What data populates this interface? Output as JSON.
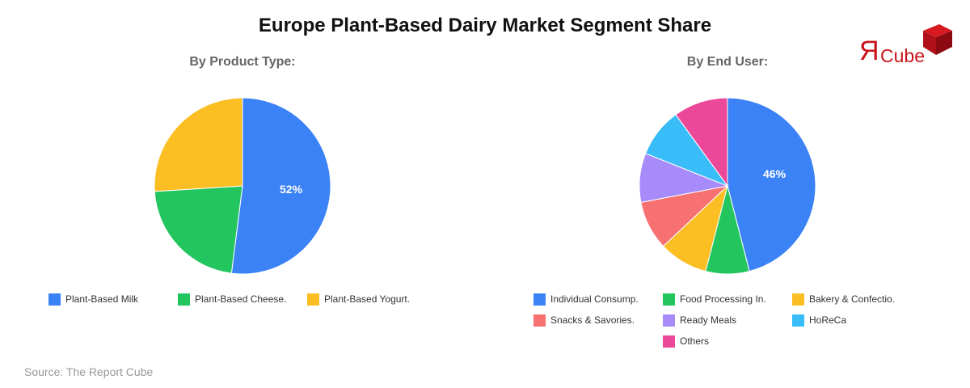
{
  "header": {
    "title": "Europe Plant-Based Dairy Market Segment Share",
    "logo_mark": "Я",
    "logo_text": "Cube"
  },
  "footer": {
    "source": "Source: The Report Cube"
  },
  "chart_data": [
    {
      "type": "pie",
      "title": "By Product Type:",
      "categories": [
        "Plant-Based Milk",
        "Plant-Based Cheese.",
        "Plant-Based Yogurt."
      ],
      "values": [
        52,
        22,
        26
      ],
      "colors": [
        "#3b82f6",
        "#22c55e",
        "#fbbf24"
      ],
      "data_labels": [
        "52%",
        "",
        ""
      ],
      "legend_position": "bottom"
    },
    {
      "type": "pie",
      "title": "By End User:",
      "categories": [
        "Individual Consump.",
        "Food Processing In.",
        "Bakery & Confectio.",
        "Snacks & Savories.",
        "Ready Meals",
        "HoReCa",
        "Others"
      ],
      "values": [
        46,
        8,
        9,
        9,
        9,
        9,
        10
      ],
      "colors": [
        "#3b82f6",
        "#22c55e",
        "#fbbf24",
        "#f87171",
        "#a78bfa",
        "#38bdf8",
        "#ec4899"
      ],
      "data_labels": [
        "46%",
        "",
        "",
        "",
        "",
        "",
        ""
      ],
      "legend_position": "bottom"
    }
  ]
}
